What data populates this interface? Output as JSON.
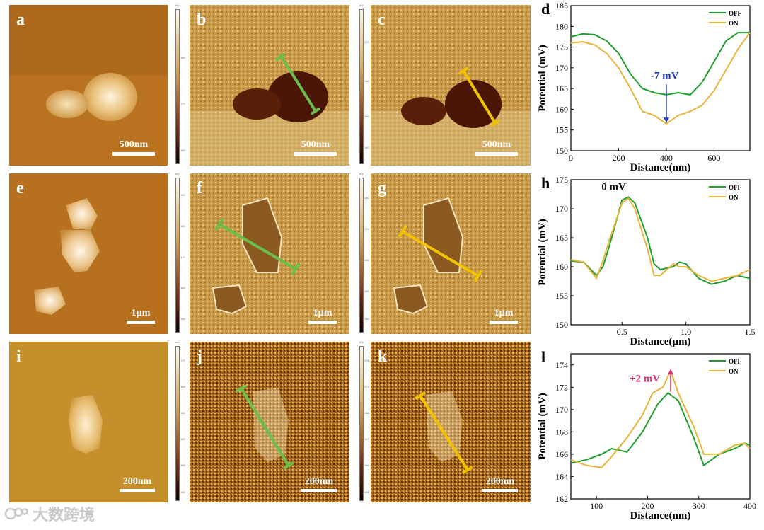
{
  "figure": {
    "panels": [
      {
        "id": "a",
        "label": "a",
        "scale": "500nm",
        "type": "topography",
        "cbar": false
      },
      {
        "id": "b",
        "label": "b",
        "scale": "500nm",
        "type": "kpfm",
        "cbar": true,
        "line": "#6abf4b"
      },
      {
        "id": "c",
        "label": "c",
        "scale": "500nm",
        "type": "kpfm",
        "cbar": true,
        "line": "#f2c200"
      },
      {
        "id": "e",
        "label": "e",
        "scale": "1µm",
        "type": "topography",
        "cbar": false
      },
      {
        "id": "f",
        "label": "f",
        "scale": "1µm",
        "type": "kpfm",
        "cbar": true,
        "line": "#6abf4b"
      },
      {
        "id": "g",
        "label": "g",
        "scale": "1µm",
        "type": "kpfm",
        "cbar": true,
        "line": "#f2c200"
      },
      {
        "id": "i",
        "label": "i",
        "scale": "200nm",
        "type": "topography",
        "cbar": false
      },
      {
        "id": "j",
        "label": "j",
        "scale": "200nm",
        "type": "kpfm",
        "cbar": true,
        "line": "#6abf4b"
      },
      {
        "id": "k",
        "label": "k",
        "scale": "200nm",
        "type": "kpfm",
        "cbar": true,
        "line": "#f2c200"
      }
    ],
    "colorbars": [
      {
        "unit": "mV",
        "ticks": [
          "180",
          "170",
          "160"
        ]
      },
      {
        "unit": "mV",
        "ticks": [
          "170",
          "160",
          "150",
          "140"
        ]
      },
      {
        "unit": "mV",
        "ticks": [
          "190",
          "180",
          "170",
          "160",
          "150"
        ]
      },
      {
        "unit": "mV",
        "ticks": [
          "180",
          "170",
          "160",
          "150",
          "140"
        ]
      },
      {
        "unit": "mV",
        "ticks": [
          "172",
          "168",
          "164",
          "160",
          "156",
          "152"
        ]
      },
      {
        "unit": "mV",
        "ticks": [
          "176",
          "172",
          "168",
          "164",
          "160",
          "156"
        ]
      }
    ],
    "watermark": "大数跨境"
  },
  "chart_data": [
    {
      "panel_label": "d",
      "type": "line",
      "xlabel": "Distance(nm)",
      "ylabel": "Potential (mV)",
      "xlim": [
        0,
        750
      ],
      "ylim": [
        150,
        185
      ],
      "xticks": [
        0,
        200,
        400,
        600
      ],
      "yticks": [
        150,
        155,
        160,
        165,
        170,
        175,
        180,
        185
      ],
      "annotation": "-7 mV",
      "annotation_color": "#1f3fbf",
      "series": [
        {
          "name": "OFF",
          "color": "#1f9e2e",
          "x": [
            0,
            50,
            100,
            150,
            200,
            250,
            300,
            350,
            400,
            450,
            500,
            550,
            600,
            650,
            700,
            750
          ],
          "y": [
            177.5,
            178.2,
            178.0,
            176.5,
            173.5,
            168.5,
            165.0,
            164.0,
            163.5,
            164.0,
            163.5,
            166.5,
            171.5,
            176.5,
            178.5,
            178.5
          ]
        },
        {
          "name": "ON",
          "color": "#e8b43a",
          "x": [
            0,
            50,
            100,
            150,
            200,
            250,
            300,
            350,
            400,
            450,
            500,
            550,
            600,
            650,
            700,
            750
          ],
          "y": [
            176.0,
            176.3,
            175.5,
            173.5,
            170.0,
            165.0,
            159.5,
            158.5,
            156.5,
            158.5,
            159.5,
            161.0,
            164.5,
            169.5,
            174.5,
            178.5
          ]
        }
      ]
    },
    {
      "panel_label": "h",
      "type": "line",
      "xlabel": "Distance(µm)",
      "ylabel": "Potential (mV)",
      "xlim": [
        0.1,
        1.5
      ],
      "ylim": [
        150,
        175
      ],
      "xticks": [
        0.5,
        1.0,
        1.5
      ],
      "xtick_labels": [
        "0.5",
        "1.0",
        "1.5"
      ],
      "yticks": [
        150,
        155,
        160,
        165,
        170,
        175
      ],
      "annotation": "0 mV",
      "annotation_color": "#111111",
      "series": [
        {
          "name": "OFF",
          "color": "#1f9e2e",
          "x": [
            0.1,
            0.2,
            0.3,
            0.35,
            0.4,
            0.5,
            0.55,
            0.6,
            0.7,
            0.75,
            0.8,
            0.9,
            0.95,
            1.0,
            1.1,
            1.2,
            1.3,
            1.4,
            1.5
          ],
          "y": [
            161.0,
            160.8,
            158.5,
            160.0,
            163.5,
            171.5,
            172.0,
            171.0,
            165.0,
            160.5,
            159.5,
            160.0,
            160.8,
            160.5,
            158.0,
            157.0,
            157.5,
            158.5,
            158.0
          ]
        },
        {
          "name": "ON",
          "color": "#e8b43a",
          "x": [
            0.1,
            0.2,
            0.3,
            0.35,
            0.4,
            0.5,
            0.55,
            0.6,
            0.7,
            0.75,
            0.8,
            0.9,
            0.95,
            1.0,
            1.1,
            1.2,
            1.3,
            1.4,
            1.5
          ],
          "y": [
            161.2,
            160.8,
            158.0,
            161.0,
            164.5,
            171.0,
            171.8,
            170.0,
            163.0,
            158.5,
            158.5,
            160.5,
            160.0,
            160.0,
            158.5,
            157.5,
            158.0,
            158.5,
            159.5
          ]
        }
      ]
    },
    {
      "panel_label": "l",
      "type": "line",
      "xlabel": "Distance(nm)",
      "ylabel": "Potential (mV)",
      "xlim": [
        50,
        400
      ],
      "ylim": [
        162,
        175
      ],
      "xticks": [
        100,
        200,
        300,
        400
      ],
      "yticks": [
        162,
        164,
        166,
        168,
        170,
        172,
        174
      ],
      "annotation": "+2 mV",
      "annotation_color": "#e0306a",
      "series": [
        {
          "name": "OFF",
          "color": "#1f9e2e",
          "x": [
            50,
            80,
            110,
            130,
            160,
            190,
            220,
            240,
            260,
            290,
            310,
            340,
            370,
            390,
            400
          ],
          "y": [
            165.2,
            165.5,
            166.0,
            166.5,
            166.2,
            168.0,
            170.5,
            171.5,
            170.8,
            167.5,
            165.0,
            166.0,
            166.5,
            167.0,
            166.8
          ]
        },
        {
          "name": "ON",
          "color": "#e8b43a",
          "x": [
            50,
            80,
            110,
            130,
            160,
            190,
            210,
            230,
            245,
            260,
            290,
            310,
            340,
            370,
            390,
            400
          ],
          "y": [
            165.5,
            165.0,
            164.8,
            165.8,
            167.5,
            169.5,
            171.5,
            172.0,
            173.5,
            171.5,
            168.5,
            166.0,
            166.0,
            166.8,
            167.0,
            166.5
          ]
        }
      ]
    }
  ]
}
